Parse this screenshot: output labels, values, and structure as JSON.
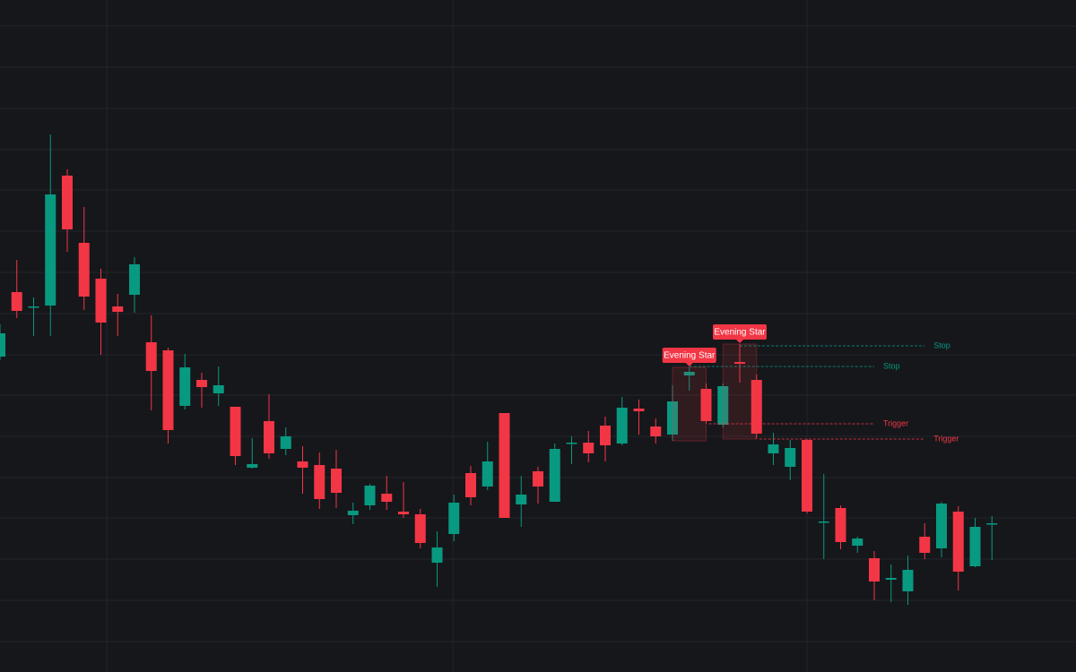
{
  "chart_data": {
    "type": "candlestick",
    "categories": [
      null,
      null,
      null,
      null,
      null,
      null,
      null,
      null,
      null,
      null,
      null,
      null,
      null,
      null,
      null,
      null,
      null,
      null,
      null,
      null,
      null,
      null,
      null,
      null,
      null,
      null,
      null,
      null,
      null,
      null,
      null,
      null,
      null,
      null,
      null,
      null,
      null,
      null,
      null,
      null,
      null,
      null,
      null,
      null,
      null,
      null,
      null,
      null,
      null,
      null,
      null,
      null,
      null,
      null,
      null,
      null,
      null,
      null,
      null,
      null
    ],
    "open": [
      352,
      424,
      407,
      409,
      554,
      479,
      439,
      408,
      421,
      368,
      359,
      297,
      326,
      311,
      296,
      228,
      280,
      249,
      235,
      231,
      227,
      175,
      186,
      199,
      179,
      176,
      122,
      154,
      222,
      207,
      289,
      187,
      224,
      190,
      255,
      256,
      275,
      255,
      294,
      274,
      265,
      331,
      316,
      276,
      346,
      326,
      244,
      229,
      259,
      167,
      183,
      141,
      127,
      103,
      90,
      151,
      138,
      179,
      118,
      165
    ],
    "high": [
      388,
      460,
      418,
      600,
      561,
      519,
      450,
      422,
      463,
      398,
      362,
      355,
      334,
      341,
      296,
      261,
      310,
      273,
      252,
      245,
      248,
      189,
      210,
      219,
      212,
      182,
      157,
      198,
      230,
      257,
      289,
      219,
      229,
      255,
      263,
      269,
      285,
      307,
      304,
      283,
      320,
      340,
      322,
      322,
      366,
      332,
      267,
      259,
      260,
      221,
      186,
      151,
      135,
      120,
      130,
      166,
      190,
      185,
      172,
      174
    ],
    "low": [
      348,
      395,
      375,
      375,
      469,
      404,
      354,
      375,
      401,
      292,
      255,
      293,
      295,
      297,
      231,
      227,
      238,
      242,
      199,
      182,
      183,
      165,
      181,
      181,
      172,
      138,
      95,
      146,
      186,
      203,
      172,
      162,
      188,
      190,
      232,
      234,
      235,
      253,
      265,
      255,
      258,
      314,
      277,
      273,
      323,
      260,
      231,
      214,
      177,
      126,
      137,
      133,
      80,
      78,
      75,
      126,
      128,
      91,
      117,
      125
    ],
    "close": [
      378,
      403,
      408,
      533,
      494,
      419,
      390,
      402,
      455,
      336,
      270,
      340,
      318,
      320,
      241,
      232,
      244,
      263,
      228,
      193,
      200,
      180,
      208,
      190,
      176,
      144,
      139,
      189,
      195,
      235,
      172,
      198,
      207,
      249,
      256,
      244,
      253,
      295,
      291,
      263,
      302,
      335,
      280,
      319,
      344,
      266,
      254,
      250,
      179,
      168,
      145,
      149,
      101,
      105,
      114,
      133,
      188,
      112,
      162,
      166
    ],
    "up_color": "#089981",
    "down_color": "#f23645",
    "ylim": [
      0,
      750
    ],
    "yticks": [
      721,
      675,
      629,
      583,
      538,
      492,
      446,
      400,
      354,
      309,
      263,
      217,
      172,
      126,
      80,
      34
    ],
    "grid": true,
    "patterns": [
      {
        "label": "Evening Star",
        "start": 40,
        "end": 42,
        "stop": 341,
        "stop_label": "Stop",
        "trigger": 277,
        "trigger_label": "Trigger"
      },
      {
        "label": "Evening Star",
        "start": 43,
        "end": 45,
        "stop": 364,
        "stop_label": "Stop",
        "trigger": 260,
        "trigger_label": "Trigger"
      }
    ]
  }
}
